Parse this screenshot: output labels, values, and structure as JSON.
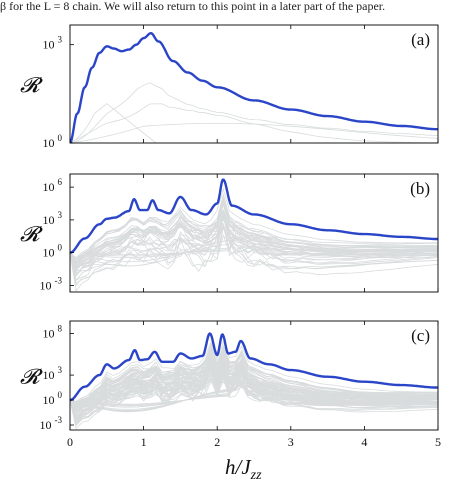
{
  "caption": "β for the L = 8 chain. We will also return to this point in a later part of the paper.",
  "x_axis": {
    "label": "h/J_zz",
    "label_main": "h/J",
    "label_sub": "zz",
    "ticks": [
      "0",
      "1",
      "2",
      "3",
      "4",
      "5"
    ]
  },
  "y_axis_label": "𝓡",
  "colors": {
    "main": "#2b45c8",
    "background": "#d8dcdd",
    "axis": "#000000"
  },
  "chart_data": [
    {
      "type": "line",
      "panel": "(a)",
      "xlabel": "",
      "ylabel": "𝓡",
      "xlim": [
        0,
        5
      ],
      "ylim_log10": [
        0,
        3.6
      ],
      "log_y": true,
      "yticks": [
        {
          "base": "10",
          "exp": "0",
          "value": 0
        },
        {
          "base": "10",
          "exp": "3",
          "value": 3
        }
      ],
      "main_series": {
        "x": [
          0,
          0.1,
          0.2,
          0.3,
          0.4,
          0.5,
          0.6,
          0.7,
          0.8,
          0.9,
          1.0,
          1.1,
          1.2,
          1.4,
          1.6,
          1.8,
          2.0,
          2.5,
          3.0,
          3.5,
          4.0,
          4.5,
          5.0
        ],
        "y_log10": [
          0,
          0.9,
          1.7,
          2.3,
          2.75,
          2.95,
          2.88,
          2.8,
          2.85,
          3.0,
          3.2,
          3.35,
          3.1,
          2.5,
          2.15,
          1.9,
          1.7,
          1.3,
          1.02,
          0.82,
          0.65,
          0.52,
          0.42
        ]
      },
      "background_count": 4
    },
    {
      "type": "line",
      "panel": "(b)",
      "xlabel": "",
      "ylabel": "𝓡",
      "xlim": [
        0,
        5
      ],
      "ylim_log10": [
        -3.6,
        7.2
      ],
      "log_y": true,
      "yticks": [
        {
          "base": "10",
          "exp": "-3",
          "value": -3
        },
        {
          "base": "10",
          "exp": "0",
          "value": 0
        },
        {
          "base": "10",
          "exp": "3",
          "value": 3
        },
        {
          "base": "10",
          "exp": "6",
          "value": 6
        }
      ],
      "main_series": {
        "x": [
          0,
          0.2,
          0.4,
          0.5,
          0.6,
          0.8,
          0.87,
          0.95,
          1.05,
          1.12,
          1.2,
          1.35,
          1.5,
          1.65,
          1.85,
          2.0,
          2.08,
          2.2,
          2.5,
          3.0,
          3.5,
          4.0,
          4.5,
          5.0
        ],
        "y_log10": [
          0,
          1.3,
          2.6,
          3.1,
          3.2,
          3.8,
          4.9,
          3.9,
          3.9,
          4.8,
          3.9,
          3.6,
          5.1,
          3.9,
          3.5,
          4.5,
          6.7,
          4.3,
          3.5,
          2.6,
          2.05,
          1.7,
          1.45,
          1.25
        ]
      },
      "background_count": 40
    },
    {
      "type": "line",
      "panel": "(c)",
      "xlabel": "h/J_zz",
      "ylabel": "𝓡",
      "xlim": [
        0,
        5
      ],
      "ylim_log10": [
        -3.6,
        9.5
      ],
      "log_y": true,
      "yticks": [
        {
          "base": "10",
          "exp": "-3",
          "value": -3
        },
        {
          "base": "10",
          "exp": "0",
          "value": 0
        },
        {
          "base": "10",
          "exp": "3",
          "value": 3
        },
        {
          "base": "10",
          "exp": "8",
          "value": 8
        }
      ],
      "main_series": {
        "x": [
          0,
          0.2,
          0.4,
          0.5,
          0.6,
          0.8,
          0.88,
          0.95,
          1.05,
          1.15,
          1.25,
          1.4,
          1.5,
          1.65,
          1.8,
          1.9,
          2.0,
          2.07,
          2.15,
          2.25,
          2.32,
          2.45,
          2.7,
          3.0,
          3.5,
          4.0,
          4.5,
          5.0
        ],
        "y_log10": [
          0,
          1.6,
          3.0,
          4.3,
          3.8,
          4.8,
          6.0,
          4.8,
          4.9,
          5.8,
          4.6,
          4.6,
          5.6,
          5.0,
          5.3,
          8.0,
          5.4,
          7.9,
          5.6,
          5.8,
          7.1,
          5.0,
          4.3,
          3.6,
          2.8,
          2.2,
          1.8,
          1.5
        ]
      },
      "background_count": 80
    }
  ],
  "panel_labels": [
    "(a)",
    "(b)",
    "(c)"
  ]
}
